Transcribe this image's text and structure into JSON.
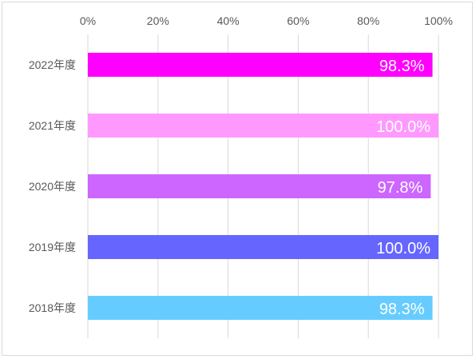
{
  "chart_data": {
    "type": "bar",
    "orientation": "horizontal",
    "categories": [
      "2022年度",
      "2021年度",
      "2020年度",
      "2019年度",
      "2018年度"
    ],
    "values": [
      98.3,
      100.0,
      97.8,
      100.0,
      98.3
    ],
    "value_labels": [
      "98.3%",
      "100.0%",
      "97.8%",
      "100.0%",
      "98.3%"
    ],
    "colors": [
      "#ff00ff",
      "#ff99ff",
      "#cc66ff",
      "#6666ff",
      "#66ccff"
    ],
    "x_ticks": [
      "0%",
      "20%",
      "40%",
      "60%",
      "80%",
      "100%"
    ],
    "xlim": [
      0,
      100
    ],
    "grid": true,
    "x_axis_position": "top",
    "legend": "none"
  }
}
